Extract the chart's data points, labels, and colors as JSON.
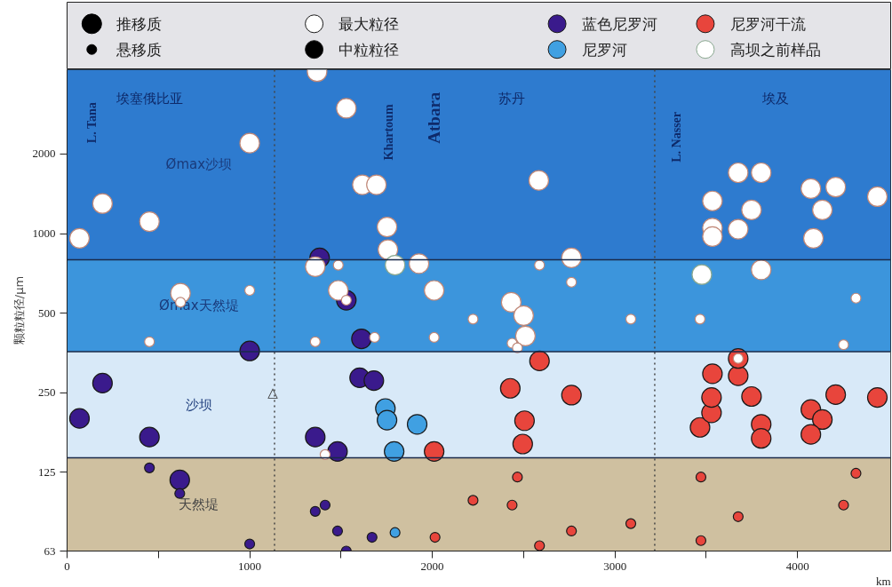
{
  "chart_data": {
    "type": "bubble",
    "ylabel": "颗粒粒径/μm",
    "xlabel": "km",
    "xlim": [
      0,
      4510
    ],
    "ylim": [
      63,
      4170
    ],
    "log": true,
    "grid": false,
    "legend": "top",
    "marker": "circle",
    "xticks": [
      0,
      {
        "value": 500,
        "label": null
      },
      1000,
      {
        "value": 1500,
        "label": null
      },
      2000,
      {
        "value": 2500,
        "label": null
      },
      3000,
      {
        "value": 3500,
        "label": null
      },
      4000
    ],
    "yticks": [
      63,
      125,
      250,
      500,
      1000,
      2000
    ],
    "size_legend": [
      {
        "value": 1,
        "label": "推移质"
      },
      {
        "value": 0.25,
        "label": "悬移质"
      }
    ],
    "bands": [
      {
        "axis": "y",
        "from": 63,
        "to": 142,
        "label": "天然堤",
        "color": "#cfc0a0"
      },
      {
        "axis": "y",
        "from": 142,
        "to": 358,
        "label": "沙坝",
        "color": "#d8e9f8"
      },
      {
        "axis": "y",
        "from": 358,
        "to": 797,
        "label": "Ømax天然堤",
        "color": "#3c95dc"
      },
      {
        "axis": "y",
        "from": 797,
        "to": 4170,
        "label": "Ømax沙坝",
        "color": "#2e7bcf"
      }
    ],
    "ref_lines": [
      {
        "axis": "x",
        "value": 1136,
        "line_style": "dotted",
        "color": "#444444"
      },
      {
        "axis": "x",
        "value": 3218,
        "line_style": "dotted",
        "color": "#444444"
      },
      {
        "axis": "y",
        "value": 142,
        "color": "#1a2a4a"
      },
      {
        "axis": "y",
        "value": 358,
        "color": "#1a2a4a"
      },
      {
        "axis": "y",
        "value": 797,
        "color": "#1a2a4a"
      }
    ],
    "annotations": [
      "埃塞俄比亚",
      "苏丹",
      "埃及",
      "L. Tana",
      "Khartoum",
      "Atbara",
      "L. Nasser",
      {
        "text": "△",
        "x": 1126,
        "y": 250
      }
    ],
    "series": [
      {
        "name": "最大粒径",
        "color": "#ffffff",
        "x": [
          68,
          194,
          451,
          1000,
          1369,
          1529,
          1617,
          1694,
          1752,
          1757,
          1927,
          1359,
          1485,
          2010,
          2583,
          2762,
          2432,
          2500,
          2510,
          621,
          3534,
          3534,
          3534,
          3675,
          3675,
          3801,
          3748,
          4073,
          4209,
          4136,
          4437,
          4087,
          3801,
          451,
          621,
          1000,
          1359,
          1485,
          1529,
          1684,
          1413,
          2010,
          2223,
          2587,
          2762,
          3087,
          3466,
          4320,
          4252,
          2437,
          2466,
          3675
        ],
        "values": [
          960,
          1300,
          1110,
          2200,
          4100,
          2980,
          1530,
          1530,
          1060,
          870,
          770,
          750,
          610,
          610,
          1590,
          810,
          550,
          490,
          410,
          595,
          1330,
          1050,
          975,
          1040,
          1700,
          1700,
          1230,
          1480,
          1500,
          1230,
          1380,
          960,
          730,
          390,
          550,
          610,
          390,
          760,
          560,
          405,
          146,
          405,
          475,
          760,
          655,
          475,
          475,
          570,
          380,
          385,
          370,
          337
        ],
        "sizes": [
          1,
          1,
          1,
          1,
          1,
          1,
          1,
          1,
          1,
          1,
          1,
          1,
          1,
          1,
          1,
          1,
          1,
          1,
          1,
          1,
          1,
          1,
          1,
          1,
          1,
          1,
          1,
          1,
          1,
          1,
          1,
          1,
          1,
          0.25,
          0.25,
          0.25,
          0.25,
          0.25,
          0.25,
          0.25,
          0.25,
          0.25,
          0.25,
          0.25,
          0.25,
          0.25,
          0.25,
          0.25,
          0.25,
          0.25,
          0.25,
          0.25
        ]
      },
      {
        "name": "中粒粒径",
        "color": "#000000"
      },
      {
        "name": "蓝色尼罗河",
        "color": "#3a1a8c",
        "x": [
          68,
          194,
          451,
          1000,
          1359,
          1481,
          1602,
          1680,
          1383,
          1529,
          1612,
          617,
          451,
          617,
          1000,
          1359,
          1413,
          1481,
          1670,
          1529
        ],
        "values": [
          200,
          272,
          170,
          360,
          170,
          150,
          285,
          278,
          810,
          560,
          400,
          117,
          130,
          104,
          67,
          89,
          94,
          75,
          71,
          63
        ],
        "sizes": [
          1,
          1,
          1,
          1,
          1,
          1,
          1,
          1,
          1,
          1,
          1,
          1,
          0.25,
          0.25,
          0.25,
          0.25,
          0.25,
          0.25,
          0.25,
          0.25
        ]
      },
      {
        "name": "尼罗河",
        "color": "#40a0e2",
        "x": [
          1743,
          1752,
          1917,
          1791,
          1796
        ],
        "values": [
          218,
          197,
          190,
          150,
          74
        ],
        "sizes": [
          1,
          1,
          1,
          1,
          0.25
        ]
      },
      {
        "name": "尼罗河干流",
        "color": "#e8453c",
        "x": [
          2010,
          2587,
          2427,
          2762,
          2505,
          2495,
          3466,
          3534,
          3675,
          3675,
          3748,
          3801,
          3801,
          3529,
          3529,
          4073,
          4136,
          4073,
          4209,
          4437,
          2223,
          2466,
          2437,
          2587,
          2762,
          3087,
          2015,
          3471,
          3471,
          3675,
          4252,
          4320
        ],
        "values": [
          150,
          330,
          260,
          245,
          196,
          160,
          185,
          295,
          290,
          337,
          242,
          190,
          168,
          210,
          240,
          216,
          198,
          174,
          246,
          240,
          98,
          120,
          94,
          66,
          75,
          80,
          71,
          120,
          69,
          85,
          94,
          124
        ],
        "sizes": [
          1,
          1,
          1,
          1,
          1,
          1,
          1,
          1,
          1,
          1,
          1,
          1,
          1,
          1,
          1,
          1,
          1,
          1,
          1,
          1,
          0.25,
          0.25,
          0.25,
          0.25,
          0.25,
          0.25,
          0.25,
          0.25,
          0.25,
          0.25,
          0.25,
          0.25
        ]
      },
      {
        "name": "高坝之前样品",
        "color": "#ffffff",
        "x": [
          1796,
          3476
        ],
        "values": [
          760,
          700
        ],
        "sizes": [
          1,
          1
        ]
      }
    ]
  }
}
